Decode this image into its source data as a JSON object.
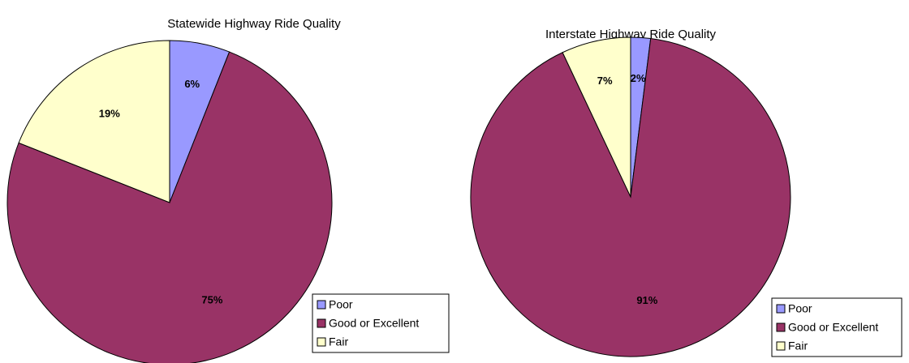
{
  "chart_data": [
    {
      "type": "pie",
      "title": "Statewide Highway Ride Quality",
      "categories": [
        "Poor",
        "Good or Excellent",
        "Fair"
      ],
      "values": [
        6,
        75,
        19
      ],
      "value_labels": [
        "6%",
        "75%",
        "19%"
      ],
      "colors": [
        "#9999ff",
        "#993366",
        "#ffffcc"
      ],
      "legend": "lower right"
    },
    {
      "type": "pie",
      "title": "Interstate Highway Ride Quality",
      "categories": [
        "Poor",
        "Good or Excellent",
        "Fair"
      ],
      "values": [
        2,
        91,
        7
      ],
      "value_labels": [
        "2%",
        "91%",
        "7%"
      ],
      "colors": [
        "#9999ff",
        "#993366",
        "#ffffcc"
      ],
      "legend": "lower right"
    }
  ]
}
